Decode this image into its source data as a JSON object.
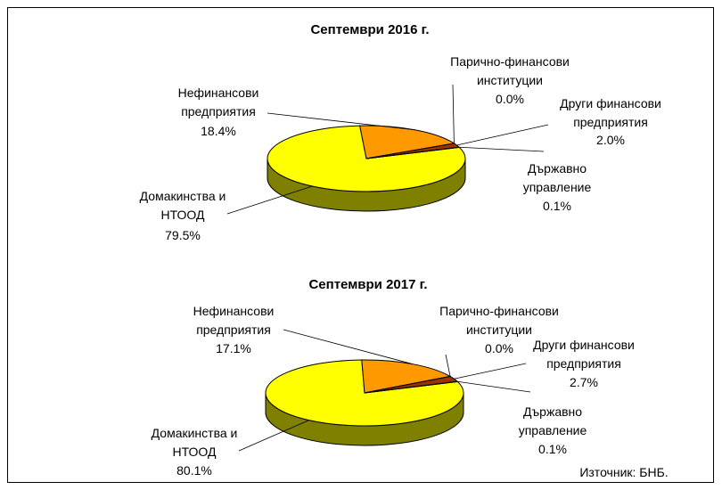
{
  "chart_data": [
    {
      "type": "pie",
      "title": "Септември 2016 г.",
      "categories": [
        "Домакинства и\nНТООД",
        "Нефинансови\nпредприятия",
        "Парично-финансови\nинституции",
        "Други финансови\nпредприятия",
        "Държавно\nуправление"
      ],
      "values": [
        79.5,
        18.4,
        0.0,
        2.0,
        0.1
      ],
      "value_labels": [
        "79.5%",
        "18.4%",
        "0.0%",
        "2.0%",
        "0.1%"
      ],
      "colors": [
        "#ffff00",
        "#ff9900",
        "#3366ff",
        "#993300",
        "#cc0000"
      ]
    },
    {
      "type": "pie",
      "title": "Септември 2017  г.",
      "categories": [
        "Домакинства и\nНТООД",
        "Нефинансови\nпредприятия",
        "Парично-финансови\nинституции",
        "Други финансови\nпредприятия",
        "Държавно\nуправление"
      ],
      "values": [
        80.1,
        17.1,
        0.0,
        2.7,
        0.1
      ],
      "value_labels": [
        "80.1%",
        "17.1%",
        "0.0%",
        "2.7%",
        "0.1%"
      ],
      "colors": [
        "#ffff00",
        "#ff9900",
        "#3366ff",
        "#993300",
        "#cc0000"
      ]
    }
  ],
  "source": "Източник: БНБ."
}
